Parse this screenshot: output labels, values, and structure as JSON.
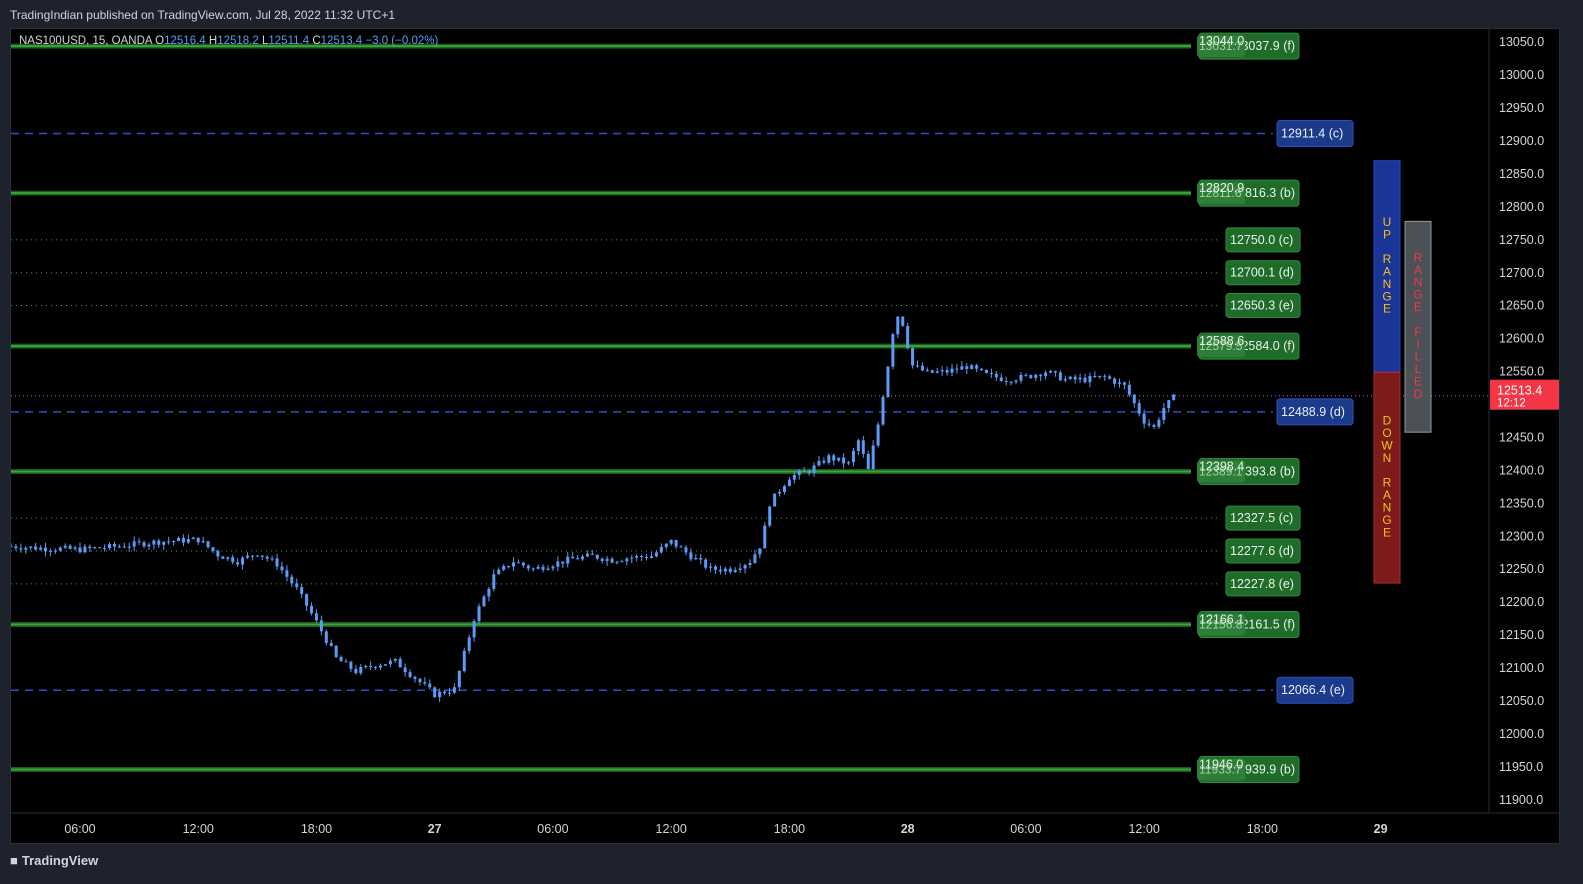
{
  "header": {
    "published": "TradingIndian published on TradingView.com, Jul 28, 2022 11:32 UTC+1"
  },
  "legend": {
    "symbol": "NAS100USD, 15, OANDA",
    "o_label": "O",
    "o": "12516.4",
    "h_label": "H",
    "h": "12518.2",
    "l_label": "L",
    "l": "12511.4",
    "c_label": "C",
    "c": "12513.4",
    "chg": "−3.0 (−0.02%)"
  },
  "footer": {
    "brand": "TradingView",
    "brand_icon": "tradingview-logo-icon"
  },
  "colors": {
    "candle": "#5b9cf6",
    "green_line": "#3aa33a",
    "green_label": "#1f6b2a",
    "blue_label": "#1b3a8a",
    "blue_dash": "#2c4fc4",
    "up_range": "#1e3aa8",
    "down_range": "#8b1f1f",
    "range_filled": "#555a60",
    "price_tag": "#f23645"
  },
  "chart_data": {
    "type": "candlestick",
    "symbol": "NAS100USD, 15, OANDA",
    "ylim": [
      11880,
      13070
    ],
    "y_ticks": [
      11900,
      11950,
      12000,
      12050,
      12100,
      12150,
      12200,
      12250,
      12300,
      12350,
      12400,
      12450,
      12500,
      12550,
      12600,
      12650,
      12700,
      12750,
      12800,
      12850,
      12900,
      12950,
      13000,
      13050
    ],
    "y_tick_labels": [
      "11900.0",
      "11950.0",
      "12000.0",
      "12050.0",
      "12100.0",
      "12150.0",
      "12200.0",
      "12250.0",
      "12300.0",
      "12350.0",
      "12400.0",
      "12450.0",
      "12500.0",
      "12550.0",
      "12600.0",
      "12650.0",
      "12700.0",
      "12750.0",
      "12800.0",
      "12850.0",
      "12900.0",
      "12950.0",
      "13000.0",
      "13050.0"
    ],
    "x_ticks": [
      {
        "t": 6,
        "label": "06:00",
        "bold": false
      },
      {
        "t": 12,
        "label": "12:00",
        "bold": false
      },
      {
        "t": 18,
        "label": "18:00",
        "bold": false
      },
      {
        "t": 24,
        "label": "27",
        "bold": true
      },
      {
        "t": 30,
        "label": "06:00",
        "bold": false
      },
      {
        "t": 36,
        "label": "12:00",
        "bold": false
      },
      {
        "t": 42,
        "label": "18:00",
        "bold": false
      },
      {
        "t": 48,
        "label": "28",
        "bold": true
      },
      {
        "t": 54,
        "label": "06:00",
        "bold": false
      },
      {
        "t": 60,
        "label": "12:00",
        "bold": false
      },
      {
        "t": 66,
        "label": "18:00",
        "bold": false
      },
      {
        "t": 72,
        "label": "29",
        "bold": true
      }
    ],
    "xlim_hours": [
      2.5,
      77.5
    ],
    "last_price": {
      "value": 12513.4,
      "label": "12513.4",
      "countdown": "12:12"
    },
    "price_path": [
      [
        2.5,
        12285
      ],
      [
        4,
        12282
      ],
      [
        6,
        12280
      ],
      [
        8,
        12285
      ],
      [
        10,
        12292
      ],
      [
        12,
        12295
      ],
      [
        13,
        12272
      ],
      [
        14,
        12262
      ],
      [
        15,
        12275
      ],
      [
        16,
        12258
      ],
      [
        17,
        12220
      ],
      [
        18,
        12170
      ],
      [
        19,
        12115
      ],
      [
        20,
        12095
      ],
      [
        21,
        12105
      ],
      [
        22,
        12110
      ],
      [
        23,
        12085
      ],
      [
        24,
        12060
      ],
      [
        25,
        12068
      ],
      [
        26,
        12175
      ],
      [
        27,
        12240
      ],
      [
        28,
        12262
      ],
      [
        29,
        12250
      ],
      [
        30,
        12258
      ],
      [
        31,
        12266
      ],
      [
        32,
        12270
      ],
      [
        33,
        12264
      ],
      [
        34,
        12268
      ],
      [
        35,
        12270
      ],
      [
        36,
        12292
      ],
      [
        37,
        12270
      ],
      [
        38,
        12250
      ],
      [
        39,
        12250
      ],
      [
        40,
        12262
      ],
      [
        40.6,
        12290
      ],
      [
        41,
        12350
      ],
      [
        42,
        12390
      ],
      [
        43,
        12400
      ],
      [
        44,
        12420
      ],
      [
        45,
        12410
      ],
      [
        45.5,
        12445
      ],
      [
        46,
        12400
      ],
      [
        46.5,
        12470
      ],
      [
        47,
        12560
      ],
      [
        47.4,
        12640
      ],
      [
        47.8,
        12620
      ],
      [
        48.2,
        12560
      ],
      [
        49,
        12548
      ],
      [
        50,
        12550
      ],
      [
        51,
        12558
      ],
      [
        52,
        12545
      ],
      [
        53,
        12538
      ],
      [
        54,
        12542
      ],
      [
        55,
        12550
      ],
      [
        56,
        12538
      ],
      [
        57,
        12538
      ],
      [
        58,
        12542
      ],
      [
        59,
        12528
      ],
      [
        60,
        12475
      ],
      [
        60.5,
        12465
      ],
      [
        61,
        12495
      ],
      [
        61.6,
        12513
      ]
    ],
    "levels": [
      {
        "price": 13044.0,
        "label": "13044.0",
        "style": "green-thick",
        "tag": "13031.7",
        "side_label": "13037.9 (f)"
      },
      {
        "price": 12911.4,
        "label": "12911.4 (c)",
        "style": "blue-dash"
      },
      {
        "price": 12820.9,
        "label": "12820.9",
        "style": "green-thick",
        "tag": "12811.6",
        "side_label": "12816.3 (b)"
      },
      {
        "price": 12750.0,
        "label": "12750.0 (c)",
        "style": "green-dot"
      },
      {
        "price": 12700.1,
        "label": "12700.1 (d)",
        "style": "green-dot"
      },
      {
        "price": 12650.3,
        "label": "12650.3 (e)",
        "style": "green-dot"
      },
      {
        "price": 12588.6,
        "label": "12588.6",
        "style": "green-thick",
        "tag": "12579.5",
        "side_label": "12584.0 (f)"
      },
      {
        "price": 12488.9,
        "label": "12488.9 (d)",
        "style": "blue-dash"
      },
      {
        "price": 12398.4,
        "label": "12398.4",
        "style": "green-thick",
        "tag": "12389.1",
        "side_label": "12393.8 (b)"
      },
      {
        "price": 12327.5,
        "label": "12327.5 (c)",
        "style": "green-dot"
      },
      {
        "price": 12277.6,
        "label": "12277.6 (d)",
        "style": "green-dot"
      },
      {
        "price": 12227.8,
        "label": "12227.8 (e)",
        "style": "green-dot"
      },
      {
        "price": 12166.1,
        "label": "12166.1",
        "style": "green-thick",
        "tag": "12156.8",
        "side_label": "12161.5 (f)"
      },
      {
        "price": 12066.4,
        "label": "12066.4 (e)",
        "style": "blue-dash"
      },
      {
        "price": 11946.0,
        "label": "11946.0",
        "style": "green-thick",
        "tag": "11933.7",
        "side_label": "11939.9 (b)"
      }
    ],
    "range_boxes": [
      {
        "name": "up-range",
        "text": "UP RANGE",
        "from": 12549,
        "to": 12870,
        "color": "#1e3aa8",
        "text_color": "#f0c020"
      },
      {
        "name": "down-range",
        "text": "DOWN RANGE",
        "from": 12229,
        "to": 12549,
        "color": "#8b1f1f",
        "text_color": "#f0c020"
      },
      {
        "name": "range-filled",
        "text": "RANGE FILLED",
        "from": 12458,
        "to": 12778,
        "color": "#555a60",
        "text_color": "#f23645"
      }
    ]
  }
}
